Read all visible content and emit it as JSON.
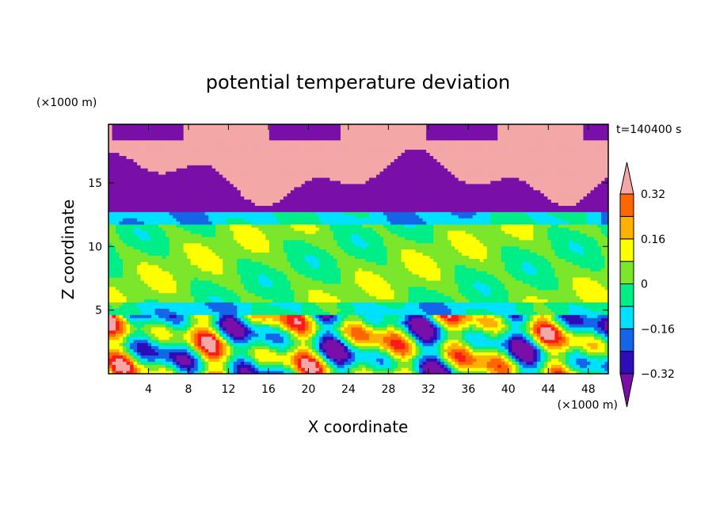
{
  "chart_data": {
    "type": "heatmap",
    "title": "potential temperature deviation",
    "xlabel": "X coordinate",
    "ylabel": "Z coordinate",
    "x_unit": "(×1000 m)",
    "y_unit": "(×1000 m)",
    "time_label": "t=140400 s",
    "xlim": [
      0,
      50
    ],
    "ylim": [
      0,
      19.6
    ],
    "x_ticks": [
      "4",
      "8",
      "12",
      "16",
      "20",
      "24",
      "28",
      "32",
      "36",
      "40",
      "44",
      "48"
    ],
    "x_tick_values": [
      4,
      8,
      12,
      16,
      20,
      24,
      28,
      32,
      36,
      40,
      44,
      48
    ],
    "y_ticks": [
      "5",
      "10",
      "15"
    ],
    "y_tick_values": [
      5,
      10,
      15
    ],
    "colorbar": {
      "levels": [
        -0.4,
        -0.32,
        -0.24,
        -0.16,
        -0.08,
        0,
        0.08,
        0.16,
        0.24,
        0.32,
        0.4
      ],
      "labels": [
        "0.32",
        "0.16",
        "0",
        "−0.16",
        "−0.32"
      ],
      "label_values": [
        0.32,
        0.16,
        0,
        -0.16,
        -0.32
      ],
      "colors": [
        "#7a0fa8",
        "#2d0db8",
        "#1565e8",
        "#00e0ff",
        "#00ee88",
        "#7be62a",
        "#ffff00",
        "#ffb000",
        "#ff6600",
        "#ff1a1a",
        "#f4a7a7"
      ]
    }
  }
}
